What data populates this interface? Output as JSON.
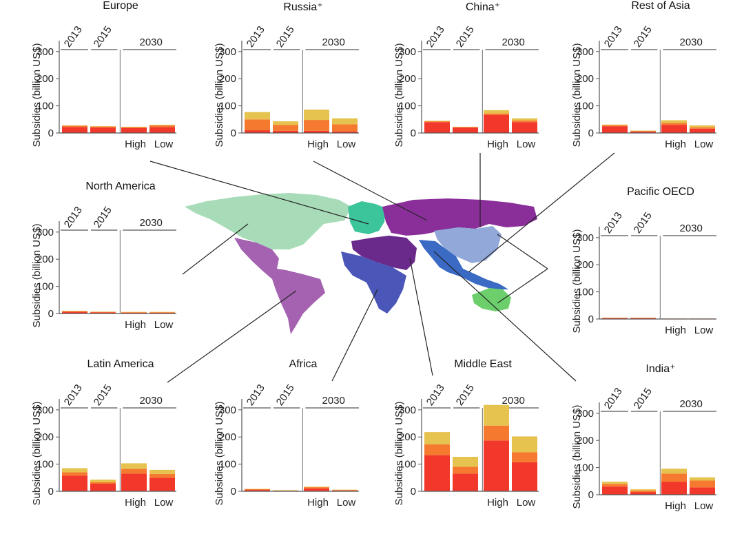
{
  "colors": {
    "red": "#f2382b",
    "orange": "#f5792e",
    "yellow": "#e6c24e",
    "axis": "#555555",
    "north_america": "#a8dcb8",
    "latin_america": "#a462b0",
    "europe": "#3cc59a",
    "russia": "#8a2f9a",
    "middle_east": "#6a2a8c",
    "africa": "#4a56b8",
    "china": "#92a8d8",
    "india_asia": "#3a6ac4",
    "pacific_oecd": "#6ccf6c"
  },
  "shared": {
    "ylabel": "Subsidies (billion US$)",
    "ylim": [
      0,
      330
    ],
    "yticks": [
      "0",
      "100",
      "200",
      "300"
    ],
    "period_labels": [
      "2013",
      "2015",
      "2030"
    ],
    "scenario_labels": [
      "High",
      "Low"
    ]
  },
  "chart_data": [
    {
      "type": "bar",
      "title": "Europe",
      "categories": [
        "2013",
        "2015",
        "2030 High",
        "2030 Low"
      ],
      "series": [
        {
          "color": "red",
          "values": [
            22,
            20,
            18,
            22
          ]
        },
        {
          "color": "orange",
          "values": [
            5,
            4,
            4,
            6
          ]
        },
        {
          "color": "yellow",
          "values": [
            1,
            1,
            1,
            2
          ]
        }
      ]
    },
    {
      "type": "bar",
      "title": "Russia⁺",
      "categories": [
        "2013",
        "2015",
        "2030 High",
        "2030 Low"
      ],
      "series": [
        {
          "color": "red",
          "values": [
            10,
            8,
            8,
            6
          ]
        },
        {
          "color": "orange",
          "values": [
            40,
            22,
            40,
            26
          ]
        },
        {
          "color": "yellow",
          "values": [
            27,
            13,
            38,
            22
          ]
        }
      ]
    },
    {
      "type": "bar",
      "title": "China⁺",
      "categories": [
        "2013",
        "2015",
        "2030 High",
        "2030 Low"
      ],
      "series": [
        {
          "color": "red",
          "values": [
            40,
            20,
            66,
            40
          ]
        },
        {
          "color": "orange",
          "values": [
            3,
            2,
            6,
            6
          ]
        },
        {
          "color": "yellow",
          "values": [
            2,
            1,
            12,
            8
          ]
        }
      ]
    },
    {
      "type": "bar",
      "title": "Rest of Asia",
      "categories": [
        "2013",
        "2015",
        "2030 High",
        "2030 Low"
      ],
      "series": [
        {
          "color": "red",
          "values": [
            25,
            6,
            30,
            16
          ]
        },
        {
          "color": "orange",
          "values": [
            3,
            1,
            7,
            5
          ]
        },
        {
          "color": "yellow",
          "values": [
            3,
            2,
            10,
            7
          ]
        }
      ]
    },
    {
      "type": "bar",
      "title": "North America",
      "categories": [
        "2013",
        "2015",
        "2030 High",
        "2030 Low"
      ],
      "series": [
        {
          "color": "red",
          "values": [
            6,
            4,
            3,
            3
          ]
        },
        {
          "color": "orange",
          "values": [
            3,
            2,
            2,
            2
          ]
        },
        {
          "color": "yellow",
          "values": [
            1,
            1,
            1,
            1
          ]
        }
      ]
    },
    {
      "type": "bar",
      "title": "Pacific OECD",
      "categories": [
        "2013",
        "2015",
        "2030 High",
        "2030 Low"
      ],
      "series": [
        {
          "color": "red",
          "values": [
            3,
            3,
            1,
            1
          ]
        },
        {
          "color": "orange",
          "values": [
            2,
            2,
            1,
            1
          ]
        },
        {
          "color": "yellow",
          "values": [
            0,
            0,
            0,
            0
          ]
        }
      ]
    },
    {
      "type": "bar",
      "title": "Latin America",
      "categories": [
        "2013",
        "2015",
        "2030 High",
        "2030 Low"
      ],
      "series": [
        {
          "color": "red",
          "values": [
            58,
            28,
            65,
            50
          ]
        },
        {
          "color": "orange",
          "values": [
            12,
            5,
            18,
            14
          ]
        },
        {
          "color": "yellow",
          "values": [
            15,
            10,
            20,
            15
          ]
        }
      ]
    },
    {
      "type": "bar",
      "title": "Africa",
      "categories": [
        "2013",
        "2015",
        "2030 High",
        "2030 Low"
      ],
      "series": [
        {
          "color": "red",
          "values": [
            5,
            2,
            10,
            3
          ]
        },
        {
          "color": "orange",
          "values": [
            3,
            1,
            5,
            2
          ]
        },
        {
          "color": "yellow",
          "values": [
            1,
            1,
            2,
            1
          ]
        }
      ]
    },
    {
      "type": "bar",
      "title": "Middle East",
      "categories": [
        "2013",
        "2015",
        "2030 High",
        "2030 Low"
      ],
      "series": [
        {
          "color": "red",
          "values": [
            133,
            65,
            187,
            107
          ]
        },
        {
          "color": "orange",
          "values": [
            40,
            25,
            55,
            37
          ]
        },
        {
          "color": "yellow",
          "values": [
            45,
            37,
            76,
            58
          ]
        }
      ]
    },
    {
      "type": "bar",
      "title": "India⁺",
      "categories": [
        "2013",
        "2015",
        "2030 High",
        "2030 Low"
      ],
      "series": [
        {
          "color": "red",
          "values": [
            30,
            10,
            48,
            27
          ]
        },
        {
          "color": "orange",
          "values": [
            10,
            5,
            30,
            25
          ]
        },
        {
          "color": "yellow",
          "values": [
            8,
            5,
            18,
            12
          ]
        }
      ]
    }
  ]
}
